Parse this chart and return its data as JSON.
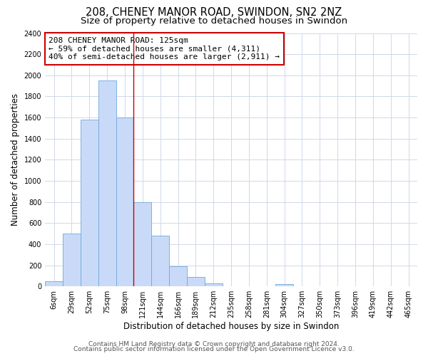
{
  "title": "208, CHENEY MANOR ROAD, SWINDON, SN2 2NZ",
  "subtitle": "Size of property relative to detached houses in Swindon",
  "xlabel": "Distribution of detached houses by size in Swindon",
  "ylabel": "Number of detached properties",
  "bar_labels": [
    "6sqm",
    "29sqm",
    "52sqm",
    "75sqm",
    "98sqm",
    "121sqm",
    "144sqm",
    "166sqm",
    "189sqm",
    "212sqm",
    "235sqm",
    "258sqm",
    "281sqm",
    "304sqm",
    "327sqm",
    "350sqm",
    "373sqm",
    "396sqm",
    "419sqm",
    "442sqm",
    "465sqm"
  ],
  "bar_values": [
    50,
    500,
    1580,
    1950,
    1600,
    800,
    480,
    190,
    90,
    30,
    0,
    0,
    0,
    25,
    0,
    0,
    0,
    0,
    0,
    0,
    0
  ],
  "bar_color": "#c9daf8",
  "bar_edge_color": "#6fa8dc",
  "vline_x": 4.5,
  "vline_color": "#cc0000",
  "annotation_line1": "208 CHENEY MANOR ROAD: 125sqm",
  "annotation_line2": "← 59% of detached houses are smaller (4,311)",
  "annotation_line3": "40% of semi-detached houses are larger (2,911) →",
  "annotation_box_color": "#ffffff",
  "annotation_box_edge": "#cc0000",
  "ylim": [
    0,
    2400
  ],
  "yticks": [
    0,
    200,
    400,
    600,
    800,
    1000,
    1200,
    1400,
    1600,
    1800,
    2000,
    2200,
    2400
  ],
  "footer1": "Contains HM Land Registry data © Crown copyright and database right 2024.",
  "footer2": "Contains public sector information licensed under the Open Government Licence v3.0.",
  "bg_color": "#ffffff",
  "grid_color": "#d0d8e8",
  "title_fontsize": 10.5,
  "subtitle_fontsize": 9.5,
  "axis_label_fontsize": 8.5,
  "tick_fontsize": 7,
  "annotation_fontsize": 8,
  "footer_fontsize": 6.5
}
